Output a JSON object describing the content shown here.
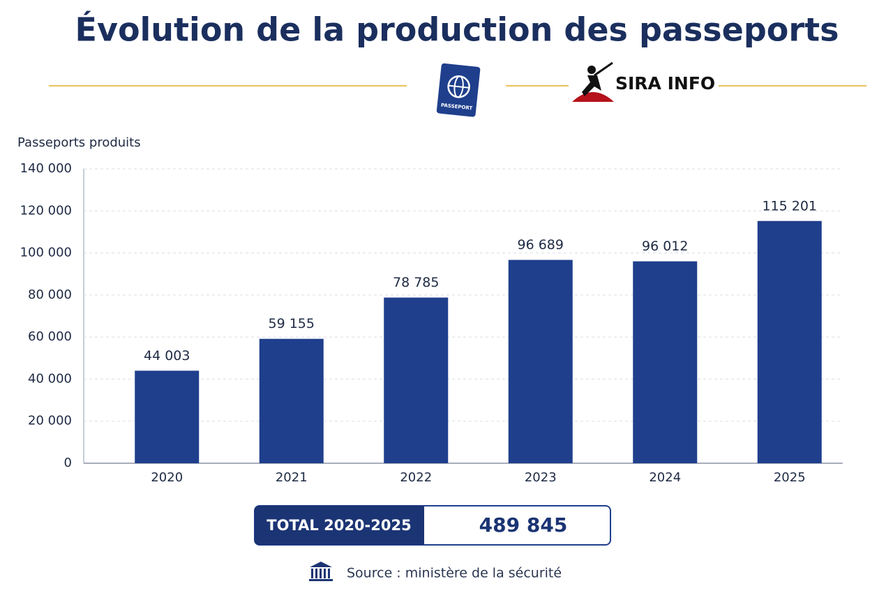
{
  "chart_data": {
    "type": "bar",
    "title": "Évolution de la production des passeports",
    "brand": "SIRA INFO",
    "icon_text": "PASSEPORT",
    "y_label": "Passeports produits",
    "categories": [
      "2020",
      "2021",
      "2022",
      "2023",
      "2024",
      "2025"
    ],
    "values": [
      44003,
      59155,
      78785,
      96689,
      96012,
      115201
    ],
    "value_labels": [
      "44 003",
      "59 155",
      "78 785",
      "96 689",
      "96 012",
      "115 201"
    ],
    "color": "#1f3f8c",
    "ylim": [
      0,
      140000
    ],
    "yticks": [
      0,
      {
        "value": 20000,
        "label": "20 000"
      },
      {
        "value": 40000,
        "label": "40 000"
      },
      {
        "value": 60000,
        "label": "60 000"
      },
      {
        "value": 80000,
        "label": "80 000"
      },
      {
        "value": 100000,
        "label": "100 000"
      },
      {
        "value": 120000,
        "label": "120 000"
      },
      {
        "value": 140000,
        "label": "140 000"
      }
    ],
    "grid": true,
    "total_label": "TOTAL 2020-2025",
    "total": {
      "value": 489845,
      "label": "489 845"
    },
    "source": "Source : ministère de la sécurité"
  }
}
